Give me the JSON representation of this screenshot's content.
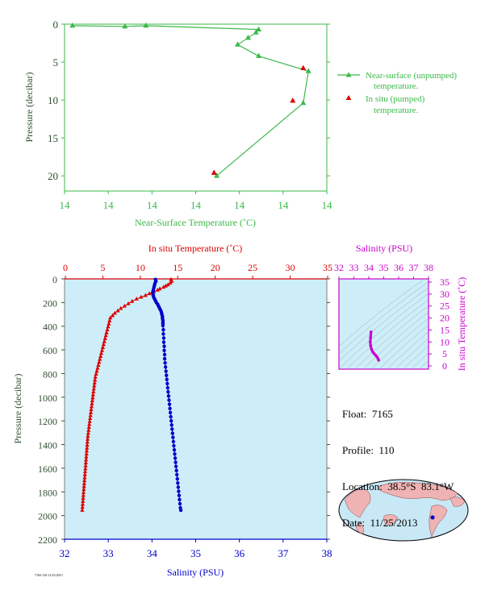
{
  "colors": {
    "green": "#3cb84a",
    "red": "#dd0000",
    "blue": "#0000cc",
    "magenta": "#cc00cc",
    "axis_dark": "#2f4f2f",
    "plot_bg": "#cdeef9"
  },
  "info": {
    "float": "Float:  7165",
    "profile": "Profile:  110",
    "location": "Location:  38.5°S  83.1°W",
    "date": "Date:  11/25/2013"
  },
  "footer_code": "7165-110-11/25/2013",
  "chart_data": [
    {
      "id": "near_surface",
      "type": "line",
      "xlabel": "Near-Surface Temperature (˚C)",
      "ylabel": "Pressure (decibar)",
      "x_tick_labels": [
        "14",
        "14",
        "14",
        "14",
        "14",
        "14",
        "14"
      ],
      "y_ticks": [
        0,
        5,
        10,
        15,
        20
      ],
      "ylim": [
        0,
        22
      ],
      "legend": [
        {
          "name": "Near-surface (unpumped)\ntemperature.",
          "marker": "line-triangle"
        },
        {
          "name": "In situ (pumped)\ntemperature.",
          "marker": "triangle"
        }
      ],
      "series": [
        {
          "name": "Near-surface (unpumped)\ntemperature.",
          "points": [
            [
              14.06,
              0.2
            ],
            [
              14.46,
              0.3
            ],
            [
              14.62,
              0.2
            ],
            [
              15.48,
              0.7
            ],
            [
              15.46,
              1.1
            ],
            [
              15.4,
              1.8
            ],
            [
              15.32,
              2.7
            ],
            [
              15.48,
              4.2
            ],
            [
              15.86,
              6.2
            ],
            [
              15.82,
              10.4
            ],
            [
              15.16,
              20.0
            ]
          ]
        },
        {
          "name": "In situ (pumped)\ntemperature.",
          "points": [
            [
              15.82,
              5.8
            ],
            [
              15.74,
              10.1
            ],
            [
              15.14,
              19.6
            ]
          ]
        }
      ]
    },
    {
      "id": "profile",
      "type": "scatter",
      "x_top_label": "In situ Temperature (˚C)",
      "x_bottom_label": "Salinity (PSU)",
      "ylabel": "Pressure (decibar)",
      "temp_ticks": [
        0,
        5,
        10,
        15,
        20,
        25,
        30,
        35
      ],
      "sal_ticks": [
        32,
        33,
        34,
        35,
        36,
        37,
        38
      ],
      "y_ticks": [
        0,
        200,
        400,
        600,
        800,
        1000,
        1200,
        1400,
        1600,
        1800,
        2000,
        2200
      ],
      "ylim": [
        0,
        2200
      ],
      "temperature": [
        [
          14.1,
          5
        ],
        [
          14.2,
          20
        ],
        [
          14.0,
          35
        ],
        [
          13.7,
          50
        ],
        [
          13.4,
          60
        ],
        [
          13.1,
          70
        ],
        [
          12.6,
          85
        ],
        [
          12.3,
          95
        ],
        [
          11.8,
          110
        ],
        [
          11.2,
          125
        ],
        [
          10.7,
          140
        ],
        [
          10.1,
          155
        ],
        [
          9.5,
          170
        ],
        [
          8.9,
          190
        ],
        [
          8.4,
          210
        ],
        [
          7.9,
          230
        ],
        [
          7.4,
          250
        ],
        [
          7.0,
          270
        ],
        [
          6.6,
          290
        ],
        [
          6.3,
          310
        ],
        [
          6.0,
          330
        ],
        [
          5.9,
          355
        ],
        [
          5.8,
          380
        ],
        [
          5.7,
          405
        ],
        [
          5.6,
          430
        ],
        [
          5.5,
          455
        ],
        [
          5.4,
          480
        ],
        [
          5.3,
          505
        ],
        [
          5.2,
          530
        ],
        [
          5.1,
          555
        ],
        [
          5.0,
          580
        ],
        [
          4.9,
          605
        ],
        [
          4.8,
          630
        ],
        [
          4.7,
          655
        ],
        [
          4.6,
          680
        ],
        [
          4.5,
          705
        ],
        [
          4.4,
          730
        ],
        [
          4.3,
          755
        ],
        [
          4.2,
          780
        ],
        [
          4.1,
          805
        ],
        [
          4.0,
          830
        ],
        [
          3.95,
          855
        ],
        [
          3.9,
          880
        ],
        [
          3.85,
          905
        ],
        [
          3.8,
          930
        ],
        [
          3.75,
          955
        ],
        [
          3.7,
          980
        ],
        [
          3.65,
          1005
        ],
        [
          3.6,
          1030
        ],
        [
          3.55,
          1055
        ],
        [
          3.5,
          1080
        ],
        [
          3.45,
          1105
        ],
        [
          3.4,
          1130
        ],
        [
          3.35,
          1155
        ],
        [
          3.3,
          1180
        ],
        [
          3.25,
          1205
        ],
        [
          3.2,
          1230
        ],
        [
          3.15,
          1255
        ],
        [
          3.1,
          1280
        ],
        [
          3.05,
          1305
        ],
        [
          3.0,
          1330
        ],
        [
          2.97,
          1355
        ],
        [
          2.94,
          1380
        ],
        [
          2.91,
          1405
        ],
        [
          2.88,
          1430
        ],
        [
          2.85,
          1455
        ],
        [
          2.82,
          1480
        ],
        [
          2.79,
          1505
        ],
        [
          2.76,
          1530
        ],
        [
          2.73,
          1555
        ],
        [
          2.7,
          1580
        ],
        [
          2.67,
          1605
        ],
        [
          2.64,
          1630
        ],
        [
          2.61,
          1655
        ],
        [
          2.58,
          1680
        ],
        [
          2.55,
          1705
        ],
        [
          2.52,
          1730
        ],
        [
          2.49,
          1755
        ],
        [
          2.46,
          1780
        ],
        [
          2.43,
          1805
        ],
        [
          2.4,
          1830
        ],
        [
          2.37,
          1855
        ],
        [
          2.34,
          1880
        ],
        [
          2.31,
          1905
        ],
        [
          2.28,
          1930
        ],
        [
          2.25,
          1955
        ]
      ],
      "salinity": [
        [
          34.08,
          5
        ],
        [
          34.09,
          20
        ],
        [
          34.07,
          35
        ],
        [
          34.06,
          50
        ],
        [
          34.05,
          65
        ],
        [
          34.04,
          80
        ],
        [
          34.03,
          95
        ],
        [
          34.02,
          110
        ],
        [
          34.02,
          125
        ],
        [
          34.03,
          140
        ],
        [
          34.04,
          155
        ],
        [
          34.06,
          170
        ],
        [
          34.08,
          185
        ],
        [
          34.1,
          200
        ],
        [
          34.13,
          215
        ],
        [
          34.15,
          230
        ],
        [
          34.17,
          245
        ],
        [
          34.19,
          260
        ],
        [
          34.21,
          275
        ],
        [
          34.22,
          290
        ],
        [
          34.23,
          305
        ],
        [
          34.24,
          320
        ],
        [
          34.24,
          335
        ],
        [
          34.25,
          350
        ],
        [
          34.25,
          365
        ],
        [
          34.25,
          380
        ],
        [
          34.25,
          395
        ],
        [
          34.26,
          430
        ],
        [
          34.26,
          465
        ],
        [
          34.27,
          500
        ],
        [
          34.27,
          535
        ],
        [
          34.28,
          570
        ],
        [
          34.28,
          605
        ],
        [
          34.29,
          640
        ],
        [
          34.29,
          675
        ],
        [
          34.3,
          710
        ],
        [
          34.31,
          745
        ],
        [
          34.32,
          780
        ],
        [
          34.33,
          815
        ],
        [
          34.34,
          850
        ],
        [
          34.35,
          885
        ],
        [
          34.36,
          920
        ],
        [
          34.37,
          955
        ],
        [
          34.38,
          990
        ],
        [
          34.39,
          1025
        ],
        [
          34.4,
          1060
        ],
        [
          34.41,
          1095
        ],
        [
          34.42,
          1130
        ],
        [
          34.43,
          1165
        ],
        [
          34.44,
          1200
        ],
        [
          34.45,
          1235
        ],
        [
          34.46,
          1270
        ],
        [
          34.47,
          1305
        ],
        [
          34.48,
          1340
        ],
        [
          34.49,
          1375
        ],
        [
          34.5,
          1410
        ],
        [
          34.51,
          1445
        ],
        [
          34.52,
          1480
        ],
        [
          34.53,
          1515
        ],
        [
          34.54,
          1550
        ],
        [
          34.55,
          1585
        ],
        [
          34.56,
          1620
        ],
        [
          34.57,
          1655
        ],
        [
          34.58,
          1690
        ],
        [
          34.59,
          1725
        ],
        [
          34.6,
          1760
        ],
        [
          34.61,
          1795
        ],
        [
          34.62,
          1830
        ],
        [
          34.63,
          1865
        ],
        [
          34.64,
          1900
        ],
        [
          34.65,
          1935
        ],
        [
          34.66,
          1955
        ]
      ]
    },
    {
      "id": "ts_diagram",
      "type": "scatter",
      "x_top_label": "Salinity (PSU)",
      "y_right_label": "In situ Temperature (˚C)",
      "sal_ticks": [
        32,
        33,
        34,
        35,
        36,
        37,
        38
      ],
      "temp_ticks": [
        0,
        5,
        10,
        15,
        20,
        25,
        30,
        35
      ],
      "points": [
        [
          34.15,
          14.2
        ],
        [
          34.12,
          12.0
        ],
        [
          34.1,
          10.0
        ],
        [
          34.12,
          8.5
        ],
        [
          34.18,
          7.0
        ],
        [
          34.25,
          6.0
        ],
        [
          34.35,
          5.2
        ],
        [
          34.45,
          4.5
        ],
        [
          34.55,
          3.8
        ],
        [
          34.62,
          3.0
        ],
        [
          34.66,
          2.4
        ]
      ]
    },
    {
      "id": "map",
      "type": "map",
      "float_position": {
        "lat": -38.5,
        "lon": -83.1
      }
    }
  ]
}
